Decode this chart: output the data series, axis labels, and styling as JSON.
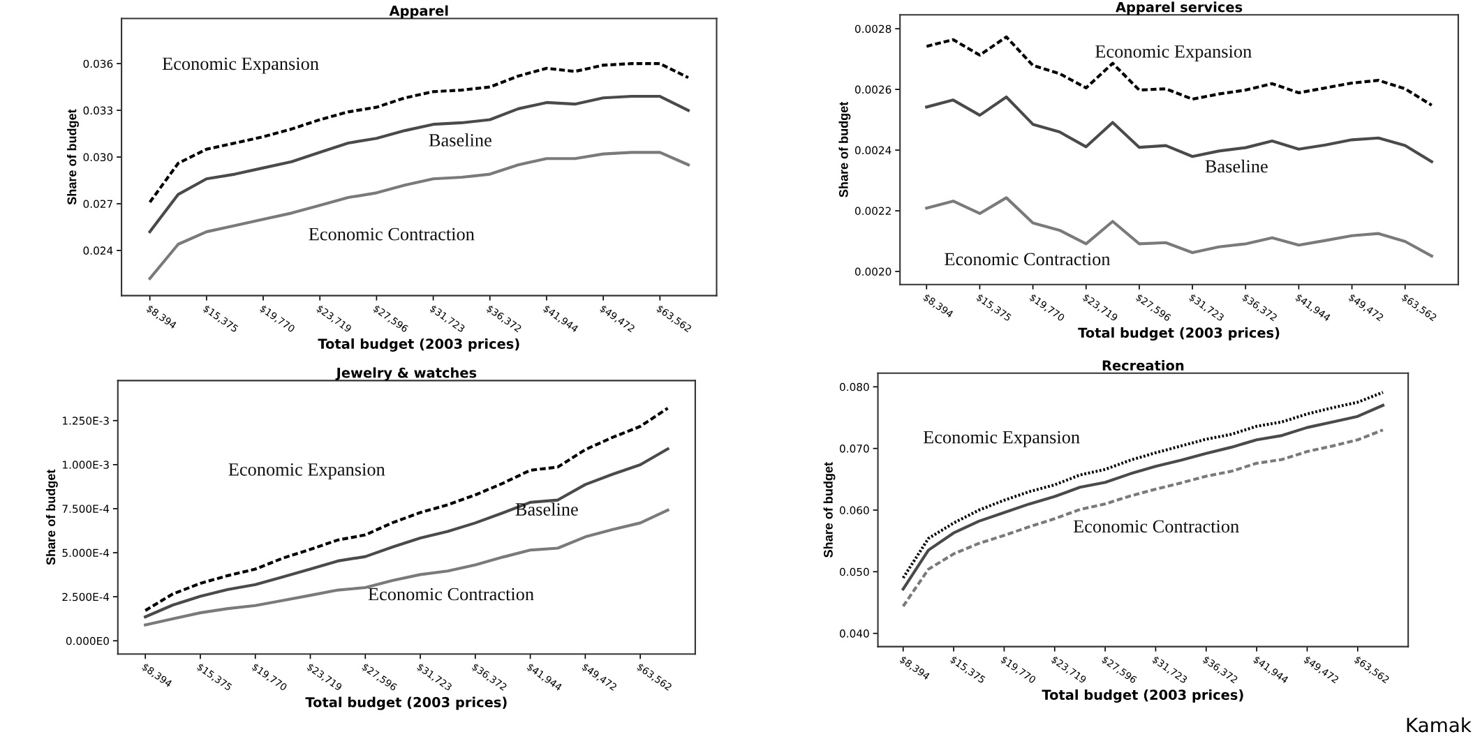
{
  "chart_data": [
    {
      "type": "line",
      "title": "Apparel",
      "xlabel": "Total budget (2003 prices)",
      "ylabel": "Share of budget",
      "categories": [
        "$8,394",
        null,
        "$15,375",
        null,
        "$19,770",
        null,
        "$23,719",
        null,
        "$27,596",
        null,
        "$31,723",
        null,
        "$36,372",
        null,
        "$41,944",
        null,
        "$49,472",
        null,
        "$63,562",
        null
      ],
      "ylim": [
        0.0211,
        0.0389
      ],
      "yticks": [
        {
          "value": 0.024,
          "label": "0.024"
        },
        {
          "value": 0.027,
          "label": "0.027"
        },
        {
          "value": 0.03,
          "label": "0.030"
        },
        {
          "value": 0.033,
          "label": "0.033"
        },
        {
          "value": 0.036,
          "label": "0.036"
        }
      ],
      "series": [
        {
          "name": "Economic Expansion",
          "color": "#000000",
          "line_style": "dashed",
          "values": [
            0.0271,
            0.0296,
            0.0305,
            0.0309,
            0.0313,
            0.0318,
            0.0324,
            0.0329,
            0.0332,
            0.0338,
            0.0342,
            0.0343,
            0.0345,
            0.0352,
            0.0357,
            0.0355,
            0.0359,
            0.036,
            0.036,
            0.0351
          ]
        },
        {
          "name": "Baseline",
          "color": "#4a4a4a",
          "line_style": "solid",
          "values": [
            0.0252,
            0.0276,
            0.0286,
            0.0289,
            0.0293,
            0.0297,
            0.0303,
            0.0309,
            0.0312,
            0.0317,
            0.0321,
            0.0322,
            0.0324,
            0.0331,
            0.0335,
            0.0334,
            0.0338,
            0.0339,
            0.0339,
            0.033
          ]
        },
        {
          "name": "Economic Contraction",
          "color": "#7a7a7a",
          "line_style": "solid",
          "values": [
            0.0222,
            0.0244,
            0.0252,
            0.0256,
            0.026,
            0.0264,
            0.0269,
            0.0274,
            0.0277,
            0.0282,
            0.0286,
            0.0287,
            0.0289,
            0.0295,
            0.0299,
            0.0299,
            0.0302,
            0.0303,
            0.0303,
            0.0295
          ]
        }
      ]
    },
    {
      "type": "line",
      "title": "Apparel services",
      "xlabel": "Total budget (2003 prices)",
      "ylabel": "Share of budget",
      "categories": [
        "$8,394",
        null,
        "$15,375",
        null,
        "$19,770",
        null,
        "$23,719",
        null,
        "$27,596",
        null,
        "$31,723",
        null,
        "$36,372",
        null,
        "$41,944",
        null,
        "$49,472",
        null,
        "$63,562",
        null
      ],
      "ylim": [
        0.001957,
        0.002846
      ],
      "yticks": [
        {
          "value": 0.002,
          "label": "0.0020"
        },
        {
          "value": 0.0022,
          "label": "0.0022"
        },
        {
          "value": 0.0024,
          "label": "0.0024"
        },
        {
          "value": 0.0026,
          "label": "0.0026"
        },
        {
          "value": 0.0028,
          "label": "0.0028"
        }
      ],
      "series": [
        {
          "name": "Economic Expansion",
          "color": "#000000",
          "line_style": "dashed",
          "values": [
            0.002742,
            0.002764,
            0.002713,
            0.002773,
            0.002679,
            0.002652,
            0.002605,
            0.002686,
            0.002598,
            0.002602,
            0.002568,
            0.002585,
            0.002598,
            0.002619,
            0.002589,
            0.002605,
            0.002621,
            0.00263,
            0.002602,
            0.002548
          ]
        },
        {
          "name": "Baseline",
          "color": "#4a4a4a",
          "line_style": "solid",
          "values": [
            0.002542,
            0.002565,
            0.002515,
            0.002575,
            0.002485,
            0.00246,
            0.002411,
            0.002491,
            0.002409,
            0.002415,
            0.002379,
            0.002397,
            0.002408,
            0.00243,
            0.002403,
            0.002417,
            0.002434,
            0.00244,
            0.002415,
            0.002362
          ]
        },
        {
          "name": "Economic Contraction",
          "color": "#7a7a7a",
          "line_style": "solid",
          "values": [
            0.002209,
            0.002232,
            0.002191,
            0.002243,
            0.00216,
            0.002136,
            0.002091,
            0.002165,
            0.002091,
            0.002095,
            0.002062,
            0.002081,
            0.002091,
            0.002111,
            0.002087,
            0.002102,
            0.002118,
            0.002125,
            0.002099,
            0.002051
          ]
        }
      ]
    },
    {
      "type": "line",
      "title": "Jewelry & watches",
      "xlabel": "Total budget (2003 prices)",
      "ylabel": "Share of budget",
      "categories": [
        "$8,394",
        null,
        "$15,375",
        null,
        "$19,770",
        null,
        "$23,719",
        null,
        "$27,596",
        null,
        "$31,723",
        null,
        "$36,372",
        null,
        "$41,944",
        null,
        "$49,472",
        null,
        "$63,562",
        null
      ],
      "ylim": [
        -7.5e-05,
        0.001477
      ],
      "yticks": [
        {
          "value": 0,
          "label": "0.000E0"
        },
        {
          "value": 0.00025,
          "label": "2.500E-4"
        },
        {
          "value": 0.0005,
          "label": "5.000E-4"
        },
        {
          "value": 0.00075,
          "label": "7.500E-4"
        },
        {
          "value": 0.001,
          "label": "1.000E-3"
        },
        {
          "value": 0.00125,
          "label": "1.250E-3"
        }
      ],
      "series": [
        {
          "name": "Economic Expansion",
          "color": "#000000",
          "line_style": "dashed",
          "values": [
            0.000172,
            0.000266,
            0.000326,
            0.00037,
            0.000407,
            0.000469,
            0.000519,
            0.000572,
            0.000601,
            0.000671,
            0.000728,
            0.000772,
            0.000828,
            0.000894,
            0.000968,
            0.000986,
            0.001085,
            0.001155,
            0.001217,
            0.00132
          ]
        },
        {
          "name": "Baseline",
          "color": "#4a4a4a",
          "line_style": "solid",
          "values": [
            0.000136,
            0.000203,
            0.000253,
            0.000291,
            0.000319,
            0.000363,
            0.000407,
            0.000453,
            0.000478,
            0.000533,
            0.000583,
            0.000621,
            0.000669,
            0.000726,
            0.000786,
            0.000799,
            0.000887,
            0.000946,
            0.000999,
            0.001089
          ]
        },
        {
          "name": "Economic Contraction",
          "color": "#7a7a7a",
          "line_style": "solid",
          "values": [
            9e-05,
            0.000125,
            0.000159,
            0.000183,
            0.0002,
            0.000229,
            0.000258,
            0.000288,
            0.000302,
            0.000343,
            0.000376,
            0.000396,
            0.000431,
            0.000475,
            0.000515,
            0.000526,
            0.00059,
            0.000632,
            0.000669,
            0.000742
          ]
        }
      ]
    },
    {
      "type": "line",
      "title": "Recreation",
      "xlabel": "Total budget (2003 prices)",
      "ylabel": "Share of budget",
      "categories": [
        "$8,394",
        null,
        "$15,375",
        null,
        "$19,770",
        null,
        "$23,719",
        null,
        "$27,596",
        null,
        "$31,723",
        null,
        "$36,372",
        null,
        "$41,944",
        null,
        "$49,472",
        null,
        "$63,562",
        null
      ],
      "ylim": [
        0.03785,
        0.08221
      ],
      "yticks": [
        {
          "value": 0.04,
          "label": "0.040"
        },
        {
          "value": 0.05,
          "label": "0.050"
        },
        {
          "value": 0.06,
          "label": "0.060"
        },
        {
          "value": 0.07,
          "label": "0.070"
        },
        {
          "value": 0.08,
          "label": "0.080"
        }
      ],
      "annotations": [
        "Kamak"
      ],
      "series": [
        {
          "name": "Economic Expansion",
          "color": "#000000",
          "line_style": "dotted",
          "values": [
            0.049,
            0.0554,
            0.0579,
            0.06,
            0.0616,
            0.063,
            0.0641,
            0.0657,
            0.0666,
            0.0681,
            0.0693,
            0.0704,
            0.0715,
            0.0723,
            0.0736,
            0.0743,
            0.0756,
            0.0766,
            0.0775,
            0.0791
          ]
        },
        {
          "color": "#4a4a4a",
          "line_style": "solid",
          "values": [
            0.0472,
            0.0535,
            0.0563,
            0.0582,
            0.0596,
            0.061,
            0.0622,
            0.0637,
            0.0645,
            0.0659,
            0.0671,
            0.0681,
            0.0692,
            0.0702,
            0.0714,
            0.0721,
            0.0734,
            0.0743,
            0.0752,
            0.077
          ]
        },
        {
          "name": "Economic Contraction",
          "color": "#7a7a7a",
          "line_style": "dashed",
          "values": [
            0.0444,
            0.0504,
            0.0529,
            0.0546,
            0.0559,
            0.0573,
            0.0586,
            0.0601,
            0.061,
            0.0623,
            0.0634,
            0.0644,
            0.0655,
            0.0663,
            0.0676,
            0.0682,
            0.0695,
            0.0704,
            0.0714,
            0.073
          ]
        }
      ]
    }
  ]
}
